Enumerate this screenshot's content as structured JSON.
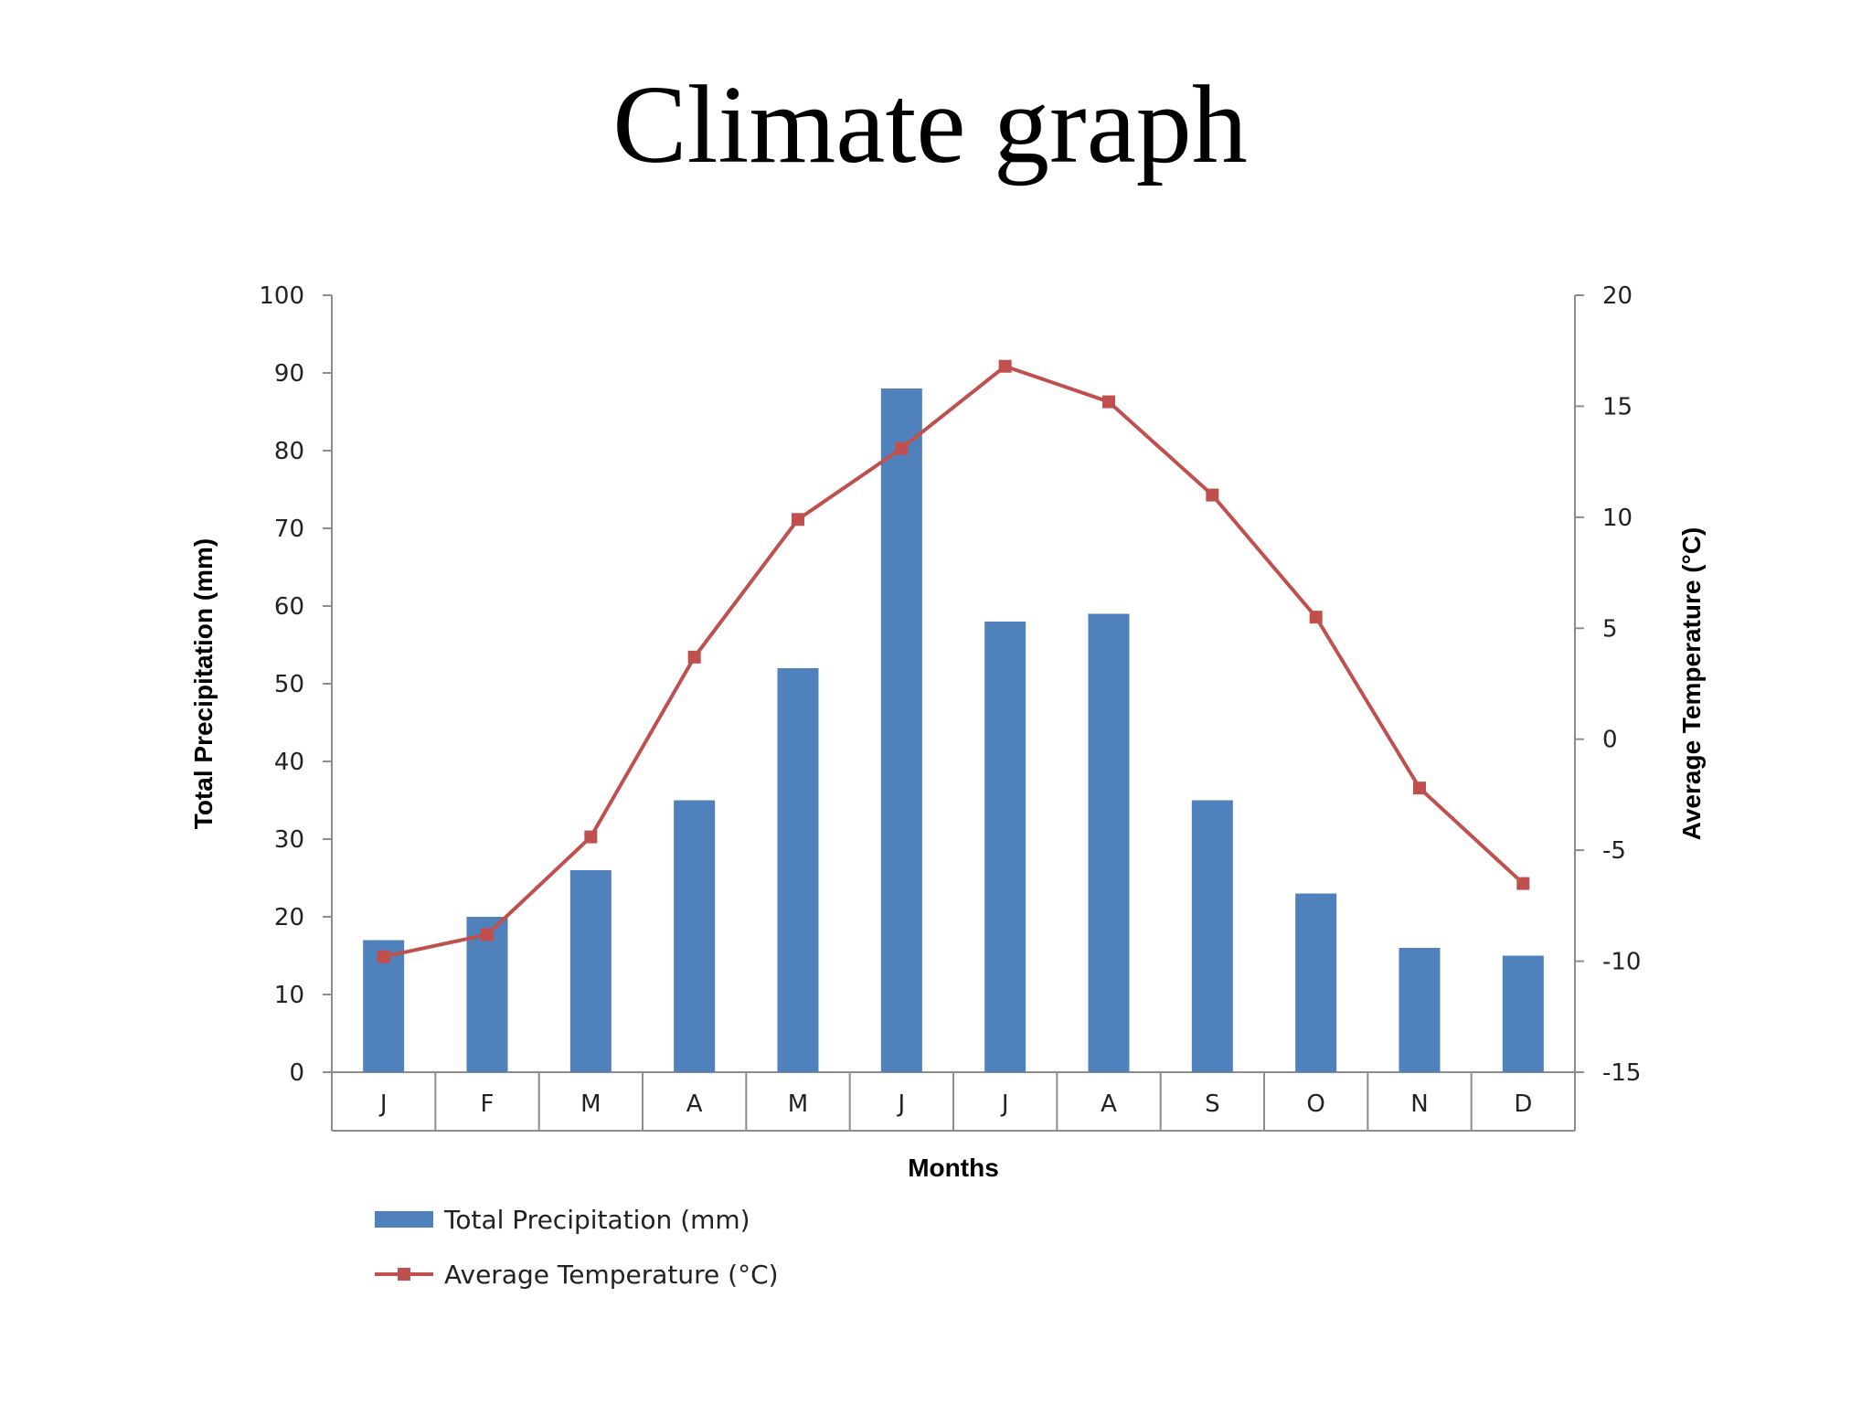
{
  "title": "Climate graph",
  "chart_data": {
    "type": "bar",
    "xlabel": "Months",
    "categories": [
      "J",
      "F",
      "M",
      "A",
      "M",
      "J",
      "J",
      "A",
      "S",
      "O",
      "N",
      "D"
    ],
    "y_left": {
      "label": "Total Precipitation  (mm)",
      "lim": [
        0,
        100
      ],
      "ticks": [
        0,
        10,
        20,
        30,
        40,
        50,
        60,
        70,
        80,
        90,
        100
      ]
    },
    "y_right": {
      "label": "Average Temperature (°C)",
      "lim": [
        -15,
        20
      ],
      "ticks": [
        -15,
        -10,
        -5,
        0,
        5,
        10,
        15,
        20
      ]
    },
    "series": [
      {
        "name": "Total Precipitation (mm)",
        "type": "bar",
        "axis": "left",
        "color": "#4f81bd",
        "values": [
          17,
          20,
          26,
          35,
          52,
          88,
          58,
          59,
          35,
          23,
          16,
          15
        ]
      },
      {
        "name": "Average Temperature (°C)",
        "type": "line",
        "axis": "right",
        "color": "#c0504d",
        "values": [
          -9.8,
          -8.8,
          -4.4,
          3.7,
          9.9,
          13.1,
          16.8,
          15.2,
          11.0,
          5.5,
          -2.2,
          -6.5
        ]
      }
    ],
    "grid": false,
    "legend_position": "bottom-left"
  }
}
